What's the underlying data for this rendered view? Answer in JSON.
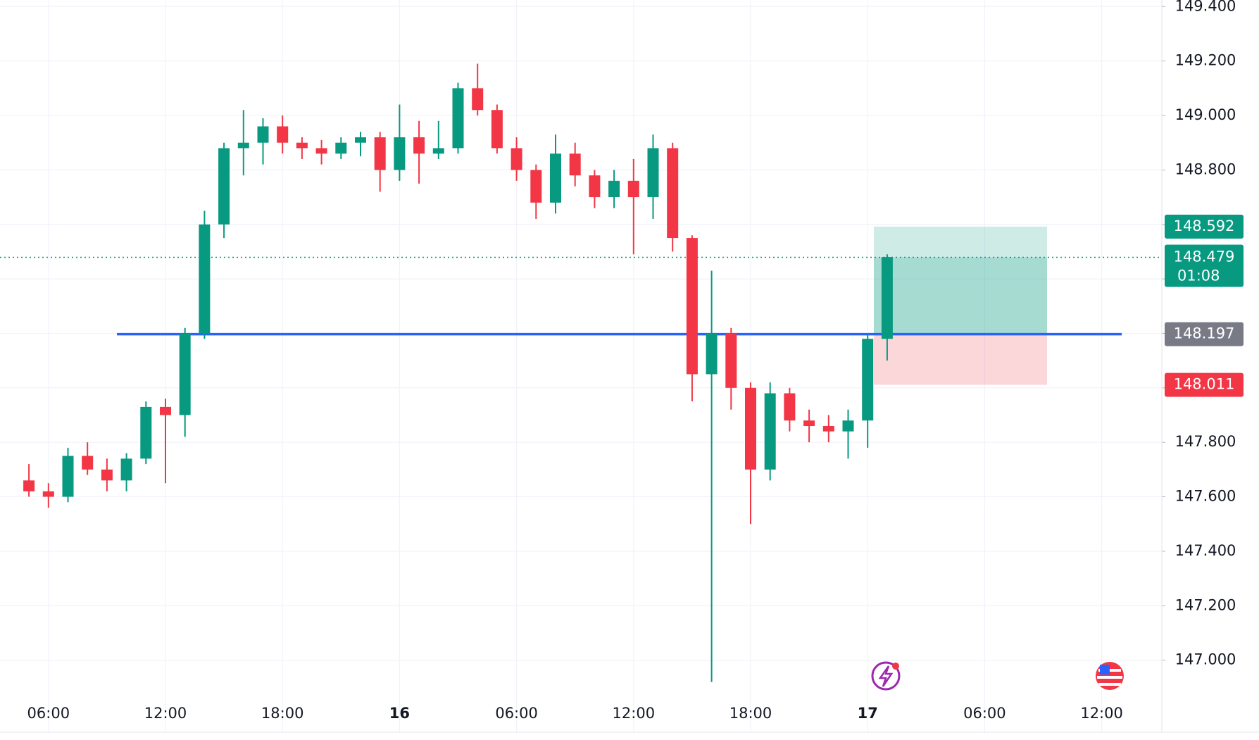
{
  "chart_data": {
    "type": "candlestick",
    "categories": [
      null,
      "06:00",
      null,
      null,
      null,
      null,
      null,
      "12:00",
      null,
      null,
      null,
      null,
      null,
      "18:00",
      null,
      null,
      null,
      null,
      null,
      "16",
      null,
      null,
      null,
      null,
      null,
      "06:00",
      null,
      null,
      null,
      null,
      null,
      "12:00",
      null,
      null,
      null,
      null,
      null,
      "18:00",
      null,
      null,
      null,
      null,
      null,
      "17",
      null,
      null,
      null,
      null,
      null,
      "06:00",
      null,
      null,
      null,
      null,
      null,
      "12:00",
      null,
      null,
      null
    ],
    "open": [
      147.66,
      147.62,
      147.6,
      147.75,
      147.7,
      147.66,
      147.74,
      147.93,
      147.9,
      148.2,
      148.6,
      148.88,
      148.9,
      148.96,
      148.9,
      148.88,
      148.86,
      148.9,
      148.92,
      148.8,
      148.92,
      148.86,
      148.88,
      149.1,
      149.02,
      148.88,
      148.8,
      148.68,
      148.86,
      148.78,
      148.7,
      148.76,
      148.7,
      148.88,
      148.55,
      148.05,
      148.2,
      148.0,
      147.7,
      147.98,
      147.88,
      147.86,
      147.84,
      147.88,
      148.18,
      null,
      null,
      null,
      null,
      null,
      null,
      null,
      null,
      null,
      null,
      null,
      null,
      null,
      null
    ],
    "high": [
      147.72,
      147.65,
      147.78,
      147.8,
      147.74,
      147.76,
      147.95,
      147.96,
      148.22,
      148.65,
      148.9,
      149.02,
      148.99,
      149.0,
      148.92,
      148.91,
      148.92,
      148.94,
      148.94,
      149.04,
      148.98,
      148.98,
      149.12,
      149.19,
      149.04,
      148.92,
      148.82,
      148.93,
      148.9,
      148.8,
      148.8,
      148.84,
      148.93,
      148.9,
      148.56,
      148.43,
      148.22,
      148.02,
      148.02,
      148.0,
      147.92,
      147.9,
      147.92,
      148.2,
      148.49,
      null,
      null,
      null,
      null,
      null,
      null,
      null,
      null,
      null,
      null,
      null,
      null,
      null,
      null
    ],
    "low": [
      147.6,
      147.56,
      147.58,
      147.68,
      147.62,
      147.62,
      147.72,
      147.65,
      147.82,
      148.18,
      148.55,
      148.78,
      148.82,
      148.86,
      148.84,
      148.82,
      148.84,
      148.85,
      148.72,
      148.76,
      148.75,
      148.84,
      148.86,
      149.0,
      148.86,
      148.76,
      148.62,
      148.64,
      148.74,
      148.66,
      148.66,
      148.49,
      148.62,
      148.5,
      147.95,
      146.92,
      147.92,
      147.5,
      147.66,
      147.84,
      147.8,
      147.8,
      147.74,
      147.78,
      148.1,
      null,
      null,
      null,
      null,
      null,
      null,
      null,
      null,
      null,
      null,
      null,
      null,
      null,
      null
    ],
    "close": [
      147.62,
      147.6,
      147.75,
      147.7,
      147.66,
      147.74,
      147.93,
      147.9,
      148.2,
      148.6,
      148.88,
      148.9,
      148.96,
      148.9,
      148.88,
      148.86,
      148.9,
      148.92,
      148.8,
      148.92,
      148.86,
      148.88,
      149.1,
      149.02,
      148.88,
      148.8,
      148.68,
      148.86,
      148.78,
      148.7,
      148.76,
      148.7,
      148.88,
      148.55,
      148.05,
      148.2,
      148.0,
      147.7,
      147.98,
      147.88,
      147.86,
      147.84,
      147.88,
      148.18,
      148.48,
      null,
      null,
      null,
      null,
      null,
      null,
      null,
      null,
      null,
      null,
      null,
      null,
      null,
      null
    ],
    "up_color": "#089981",
    "down_color": "#f23645",
    "ylim": [
      146.876,
      149.424
    ],
    "yticks": [
      {
        "value": 147.0,
        "label": "147.000"
      },
      {
        "value": 147.2,
        "label": "147.200"
      },
      {
        "value": 147.4,
        "label": "147.400"
      },
      {
        "value": 147.6,
        "label": "147.600"
      },
      {
        "value": 147.8,
        "label": "147.800"
      },
      {
        "value": 148.0,
        "label": "148.000"
      },
      {
        "value": 148.2,
        "label": "148.200"
      },
      {
        "value": 148.4,
        "label": "148.400"
      },
      {
        "value": 148.6,
        "label": "148.600"
      },
      {
        "value": 148.8,
        "label": "148.800"
      },
      {
        "value": 149.0,
        "label": "149.000"
      },
      {
        "value": 149.2,
        "label": "149.200"
      },
      {
        "value": 149.4,
        "label": "149.400"
      }
    ],
    "grid": true,
    "position": {
      "target": 148.592,
      "entry": 148.197,
      "stop": 148.011,
      "target_color": "#089981",
      "entry_color": "#2962ff",
      "stop_color": "#f23645"
    },
    "last_price": 148.479,
    "countdown": "01:08"
  }
}
